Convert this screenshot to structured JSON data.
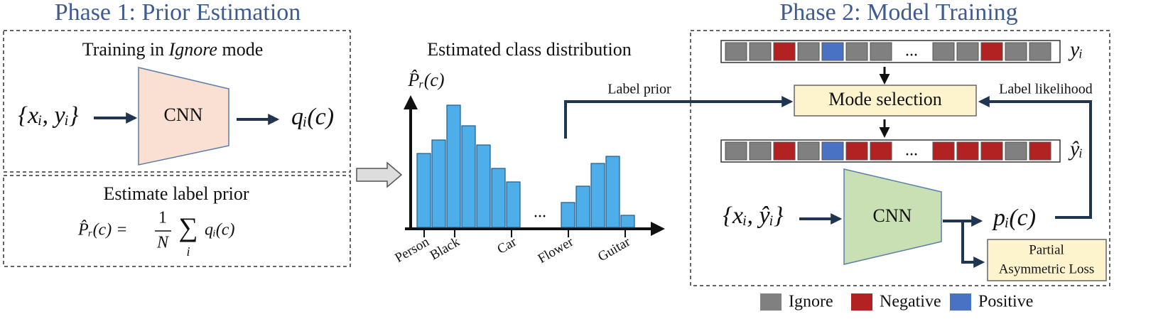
{
  "phase1": {
    "title": "Phase 1: Prior Estimation",
    "training_pre": "Training in ",
    "training_mode": "Ignore",
    "training_post": " mode",
    "input": "{xᵢ, yᵢ}",
    "cnn": "CNN",
    "output": "qᵢ(c)",
    "estimate_title": "Estimate label prior",
    "formula": {
      "lhs": "P̂ᵣ(c) =",
      "num": "1",
      "den": "N",
      "sum": "∑",
      "sum_sub": "i",
      "term": "qᵢ(c)"
    }
  },
  "distribution": {
    "title": "Estimated class distribution",
    "axis_label": "P̂ᵣ(c)",
    "values": [
      104,
      123,
      172,
      143,
      116,
      83,
      64,
      35,
      58,
      90,
      100,
      17
    ],
    "ylim": [
      0,
      180
    ],
    "ellipsis": "...",
    "categories": [
      "Person",
      "Black",
      "Car",
      "Flower",
      "Guitar"
    ]
  },
  "phase2": {
    "title": "Phase 2: Model Training",
    "label_prior": "Label prior",
    "label_likelihood": "Label likelihood",
    "row1_label": "yᵢ",
    "row2_label": "ŷᵢ",
    "ellipsis": "...",
    "mode_selection": "Mode selection",
    "input": "{xᵢ, ŷᵢ}",
    "cnn": "CNN",
    "output": "pᵢ(c)",
    "loss_line1": "Partial",
    "loss_line2": "Asymmetric Loss"
  },
  "legend": [
    "Ignore",
    "Negative",
    "Positive"
  ]
}
